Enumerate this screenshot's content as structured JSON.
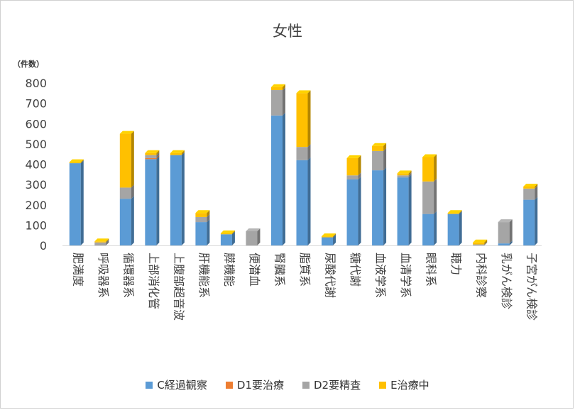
{
  "chart_data": {
    "type": "bar",
    "stacked": true,
    "title": "女性",
    "unit_label": "（件数）",
    "ylim": [
      0,
      800
    ],
    "yticks": [
      0,
      100,
      200,
      300,
      400,
      500,
      600,
      700,
      800
    ],
    "grid": false,
    "legend_position": "bottom",
    "categories": [
      "肥満度",
      "呼吸器系",
      "循環器系",
      "上部消化管",
      "上腹部超音波",
      "肝機能系",
      "膵機能",
      "便潜血",
      "腎臓系",
      "脂質系",
      "尿酸代謝",
      "糖代謝",
      "血液学系",
      "血清学系",
      "眼科系",
      "聴力",
      "内科診察",
      "乳がん検診",
      "子宮がん検診"
    ],
    "series": [
      {
        "name": "C経過観察",
        "color": "#5b9bd5",
        "values": [
          405,
          0,
          230,
          425,
          445,
          115,
          55,
          0,
          640,
          420,
          40,
          325,
          370,
          335,
          155,
          155,
          0,
          10,
          225
        ]
      },
      {
        "name": "D1要治療",
        "color": "#ed7d31",
        "values": [
          0,
          0,
          0,
          5,
          0,
          0,
          0,
          0,
          0,
          0,
          0,
          0,
          0,
          0,
          0,
          0,
          0,
          0,
          0
        ]
      },
      {
        "name": "D2要精査",
        "color": "#a5a5a5",
        "values": [
          0,
          15,
          55,
          15,
          0,
          25,
          0,
          70,
          125,
          65,
          0,
          20,
          95,
          10,
          160,
          0,
          5,
          105,
          55
        ]
      },
      {
        "name": "E治療中",
        "color": "#ffc000",
        "values": [
          5,
          5,
          265,
          10,
          10,
          20,
          5,
          0,
          15,
          265,
          5,
          85,
          25,
          10,
          120,
          5,
          10,
          0,
          10
        ]
      }
    ]
  }
}
